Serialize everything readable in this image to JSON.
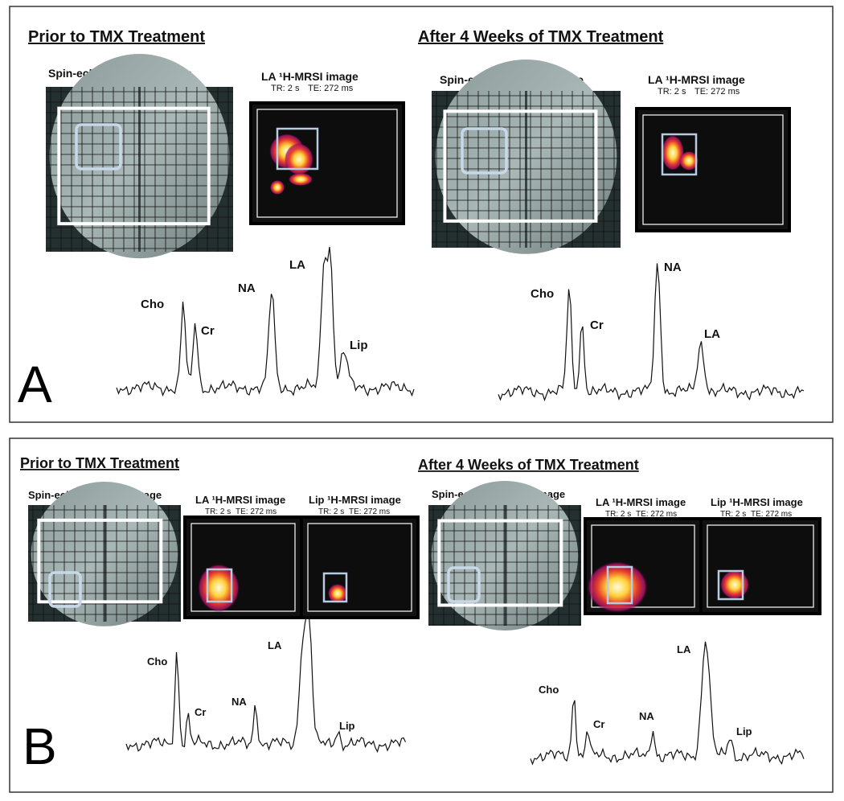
{
  "panels": [
    {
      "label": "A",
      "sides": [
        {
          "heading": "Prior to TMX Treatment",
          "scout": "Spin-echo scout MR image",
          "maps": [
            {
              "title": "LA ¹H-MRSI image",
              "tr": "TR: 2 s",
              "te": "TE: 272 ms"
            }
          ],
          "peaks": [
            "Cho",
            "Cr",
            "NA",
            "LA",
            "Lip"
          ]
        },
        {
          "heading": "After 4 Weeks of TMX Treatment",
          "scout": "Spin-echo scout MR image",
          "maps": [
            {
              "title": "LA ¹H-MRSI image",
              "tr": "TR: 2 s",
              "te": "TE: 272 ms"
            }
          ],
          "peaks": [
            "Cho",
            "Cr",
            "NA",
            "LA"
          ]
        }
      ]
    },
    {
      "label": "B",
      "sides": [
        {
          "heading": "Prior to TMX Treatment",
          "scout": "Spin-echo scout MR image",
          "maps": [
            {
              "title": "LA ¹H-MRSI image",
              "tr": "TR: 2 s",
              "te": "TE: 272 ms"
            },
            {
              "title": "Lip ¹H-MRSI image",
              "tr": "TR: 2 s",
              "te": "TE: 272 ms"
            }
          ],
          "peaks": [
            "Cho",
            "Cr",
            "NA",
            "LA",
            "Lip"
          ]
        },
        {
          "heading": "After 4 Weeks of TMX Treatment",
          "scout": "Spin-echo scout MR image",
          "maps": [
            {
              "title": "LA ¹H-MRSI image",
              "tr": "TR: 2 s",
              "te": "TE: 272 ms"
            },
            {
              "title": "Lip ¹H-MRSI image",
              "tr": "TR: 2 s",
              "te": "TE: 272 ms"
            }
          ],
          "peaks": [
            "Cho",
            "Cr",
            "NA",
            "LA",
            "Lip"
          ]
        }
      ]
    }
  ]
}
